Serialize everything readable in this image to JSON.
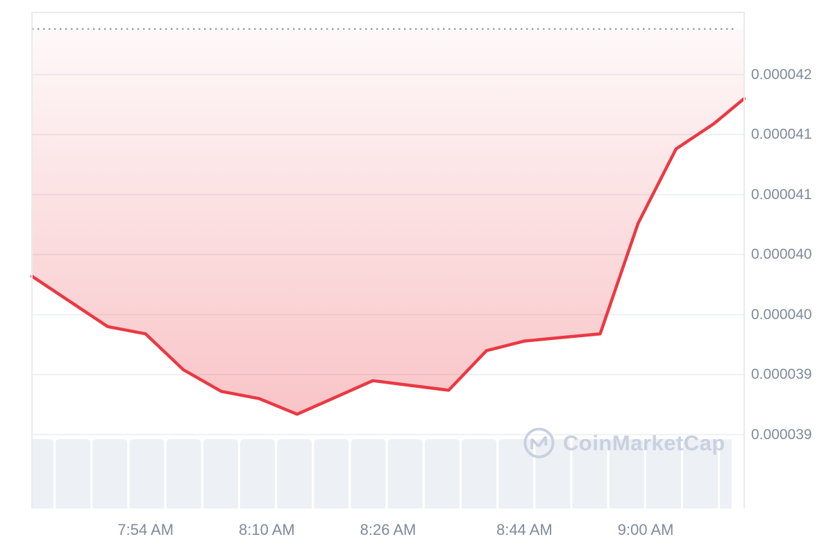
{
  "watermark": {
    "text": "CoinMarketCap"
  },
  "colors": {
    "line": "#ea3943",
    "area_top": "rgba(234,57,67,0.03)",
    "area_bottom": "rgba(234,57,67,0.30)",
    "axis_text": "#808a9d",
    "gridline": "#eef0f3",
    "plot_border": "#e7eaee",
    "volume_bar": "#edf0f4",
    "dotted_line": "#9aa3b0",
    "watermark": "#c9d1e0"
  },
  "chart_data": {
    "type": "area",
    "title": "",
    "legend": "none",
    "grid": "horizontal",
    "series": [
      {
        "name": "price",
        "x": [
          "7:39 AM",
          "7:44 AM",
          "7:49 AM",
          "7:54 AM",
          "7:59 AM",
          "8:04 AM",
          "8:09 AM",
          "8:14 AM",
          "8:19 AM",
          "8:24 AM",
          "8:29 AM",
          "8:34 AM",
          "8:39 AM",
          "8:44 AM",
          "8:49 AM",
          "8:54 AM",
          "8:59 AM",
          "9:04 AM",
          "9:09 AM",
          "9:13 AM"
        ],
        "values": [
          4.032e-05,
          4.011e-05,
          3.99e-05,
          3.984e-05,
          3.954e-05,
          3.936e-05,
          3.93e-05,
          3.917e-05,
          3.931e-05,
          3.945e-05,
          3.941e-05,
          3.937e-05,
          3.97e-05,
          3.978e-05,
          3.981e-05,
          3.984e-05,
          4.076e-05,
          4.138e-05,
          4.159e-05,
          4.18e-05
        ]
      }
    ],
    "y_axis": {
      "gridline_values": [
        4.2e-05,
        4.15e-05,
        4.1e-05,
        4.05e-05,
        4e-05,
        3.95e-05,
        3.9e-05
      ],
      "tick_labels": [
        "0.000042",
        "0.000041",
        "0.000041",
        "0.000040",
        "0.000040",
        "0.000039",
        "0.000039"
      ]
    },
    "x_axis": {
      "tick_labels": [
        "7:54 AM",
        "8:10 AM",
        "8:26 AM",
        "8:44 AM",
        "9:00 AM"
      ]
    },
    "reference_line": {
      "style": "dotted",
      "value": 4.238e-05
    },
    "volume_bars": {
      "relative_heights": [
        1,
        1,
        1,
        1,
        1,
        1,
        1,
        1,
        1,
        1,
        1,
        1,
        1,
        1,
        1,
        1,
        1,
        1,
        1,
        1
      ]
    }
  }
}
